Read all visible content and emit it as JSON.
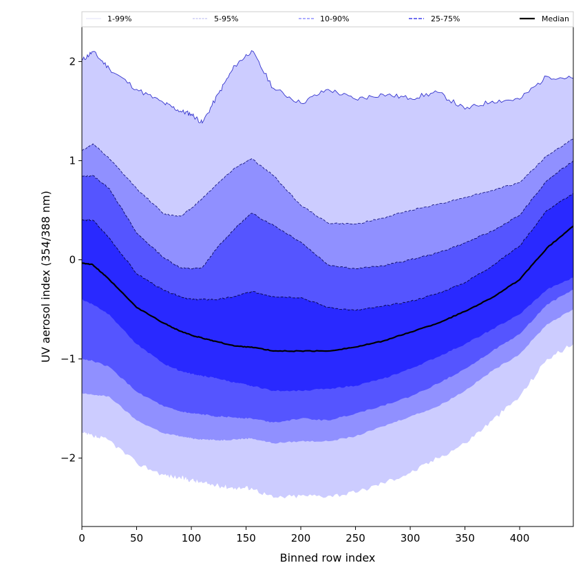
{
  "chart_data": {
    "type": "area",
    "title": "",
    "xlabel": "Binned row index",
    "ylabel": "UV aerosol index (354/388 nm)",
    "xlim": [
      0,
      449
    ],
    "ylim": [
      -2.69,
      2.35
    ],
    "xticks": [
      0,
      50,
      100,
      150,
      200,
      250,
      300,
      350,
      400
    ],
    "yticks": [
      -2,
      -1,
      0,
      1,
      2
    ],
    "ytick_labels": [
      "−2",
      "−1",
      "0",
      "1",
      "2"
    ],
    "grid": false,
    "legend": {
      "placement": "top",
      "entries": [
        "1-99%",
        "5-95%",
        "10-90%",
        "25-75%",
        "Median"
      ]
    },
    "x": [
      0,
      10,
      25,
      50,
      75,
      90,
      100,
      110,
      125,
      140,
      155,
      175,
      200,
      225,
      250,
      275,
      300,
      325,
      350,
      375,
      400,
      425,
      449
    ],
    "bands": [
      {
        "name": "1-99%",
        "color": "#ccccff",
        "line_color": "#3333cc",
        "upper": [
          2.01,
          2.1,
          1.93,
          1.72,
          1.58,
          1.5,
          1.47,
          1.38,
          1.68,
          1.96,
          2.11,
          1.73,
          1.58,
          1.72,
          1.62,
          1.67,
          1.63,
          1.69,
          1.52,
          1.6,
          1.62,
          1.85,
          1.83
        ],
        "lower": [
          -1.75,
          -1.78,
          -1.82,
          -2.05,
          -2.17,
          -2.2,
          -2.22,
          -2.25,
          -2.28,
          -2.3,
          -2.3,
          -2.4,
          -2.38,
          -2.38,
          -2.35,
          -2.25,
          -2.15,
          -2.0,
          -1.85,
          -1.62,
          -1.38,
          -1.0,
          -0.85
        ]
      },
      {
        "name": "5-95%",
        "color": "#9090ff",
        "line_color": "#1a1a80",
        "upper": [
          1.1,
          1.17,
          1.02,
          0.72,
          0.46,
          0.44,
          0.52,
          0.62,
          0.78,
          0.93,
          1.02,
          0.85,
          0.55,
          0.37,
          0.36,
          0.42,
          0.5,
          0.56,
          0.63,
          0.7,
          0.78,
          1.05,
          1.22
        ],
        "lower": [
          -1.35,
          -1.36,
          -1.38,
          -1.62,
          -1.75,
          -1.78,
          -1.8,
          -1.81,
          -1.82,
          -1.81,
          -1.8,
          -1.85,
          -1.83,
          -1.83,
          -1.78,
          -1.68,
          -1.58,
          -1.48,
          -1.32,
          -1.12,
          -0.95,
          -0.65,
          -0.5
        ]
      },
      {
        "name": "10-90%",
        "color": "#5555ff",
        "line_color": "#0d0d60",
        "upper": [
          0.84,
          0.85,
          0.72,
          0.27,
          0.02,
          -0.08,
          -0.09,
          -0.08,
          0.14,
          0.32,
          0.47,
          0.35,
          0.18,
          -0.05,
          -0.09,
          -0.06,
          0.0,
          0.07,
          0.17,
          0.29,
          0.45,
          0.8,
          1.0
        ],
        "lower": [
          -1.0,
          -1.02,
          -1.08,
          -1.33,
          -1.48,
          -1.53,
          -1.55,
          -1.56,
          -1.58,
          -1.59,
          -1.6,
          -1.64,
          -1.6,
          -1.62,
          -1.55,
          -1.47,
          -1.38,
          -1.25,
          -1.1,
          -0.92,
          -0.75,
          -0.45,
          -0.3
        ]
      },
      {
        "name": "25-75%",
        "color": "#2929ff",
        "line_color": "#050540",
        "upper": [
          0.4,
          0.4,
          0.22,
          -0.14,
          -0.31,
          -0.37,
          -0.4,
          -0.4,
          -0.4,
          -0.37,
          -0.32,
          -0.37,
          -0.38,
          -0.48,
          -0.51,
          -0.47,
          -0.42,
          -0.34,
          -0.23,
          -0.06,
          0.14,
          0.5,
          0.67
        ],
        "lower": [
          -0.4,
          -0.45,
          -0.55,
          -0.85,
          -1.05,
          -1.12,
          -1.15,
          -1.17,
          -1.2,
          -1.24,
          -1.27,
          -1.32,
          -1.32,
          -1.3,
          -1.27,
          -1.2,
          -1.1,
          -0.98,
          -0.85,
          -0.7,
          -0.55,
          -0.3,
          -0.18
        ]
      }
    ],
    "median": {
      "name": "Median",
      "color": "#000000",
      "values": [
        -0.03,
        -0.05,
        -0.2,
        -0.48,
        -0.64,
        -0.72,
        -0.76,
        -0.79,
        -0.83,
        -0.87,
        -0.88,
        -0.92,
        -0.92,
        -0.92,
        -0.88,
        -0.82,
        -0.73,
        -0.64,
        -0.52,
        -0.38,
        -0.2,
        0.12,
        0.34
      ]
    }
  }
}
